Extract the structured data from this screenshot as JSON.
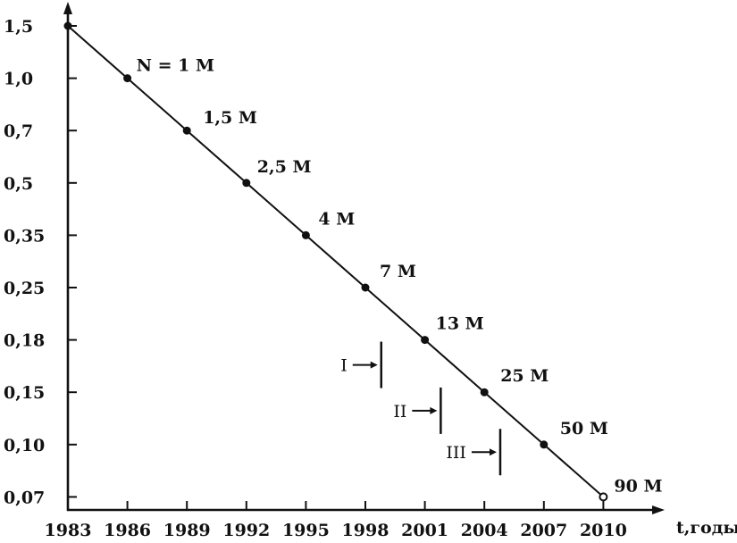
{
  "chart_data": {
    "type": "line",
    "title": "",
    "xlabel": "t,годы",
    "ylabel": "",
    "y_scale": "log",
    "x_ticks": [
      "1983",
      "1986",
      "1989",
      "1992",
      "1995",
      "1998",
      "2001",
      "2004",
      "2007",
      "2010"
    ],
    "y_ticks": [
      "1,5",
      "1,0",
      "0,7",
      "0,5",
      "0,35",
      "0,25",
      "0,18",
      "0,15",
      "0,10",
      "0,07"
    ],
    "grid": false,
    "legend": "none",
    "series": [
      {
        "x": [
          1983,
          1986,
          1989,
          1992,
          1995,
          1998,
          2001,
          2004,
          2007,
          2010
        ],
        "y": [
          1.5,
          1.0,
          0.7,
          0.5,
          0.35,
          0.25,
          0.18,
          0.15,
          0.1,
          0.07
        ],
        "point_labels": [
          "",
          "N = 1 M",
          "1,5 M",
          "2,5 M",
          "4 M",
          "7 M",
          "13 M",
          "25 M",
          "50 M",
          "90 M"
        ],
        "open_last_point": true
      }
    ],
    "annotations": [
      {
        "label": "I",
        "x": 1998.8,
        "y": 0.165
      },
      {
        "label": "II",
        "x": 2001.8,
        "y": 0.13
      },
      {
        "label": "III",
        "x": 2004.8,
        "y": 0.095
      }
    ],
    "colors": {
      "ink": "#111111",
      "background": "#ffffff"
    }
  }
}
